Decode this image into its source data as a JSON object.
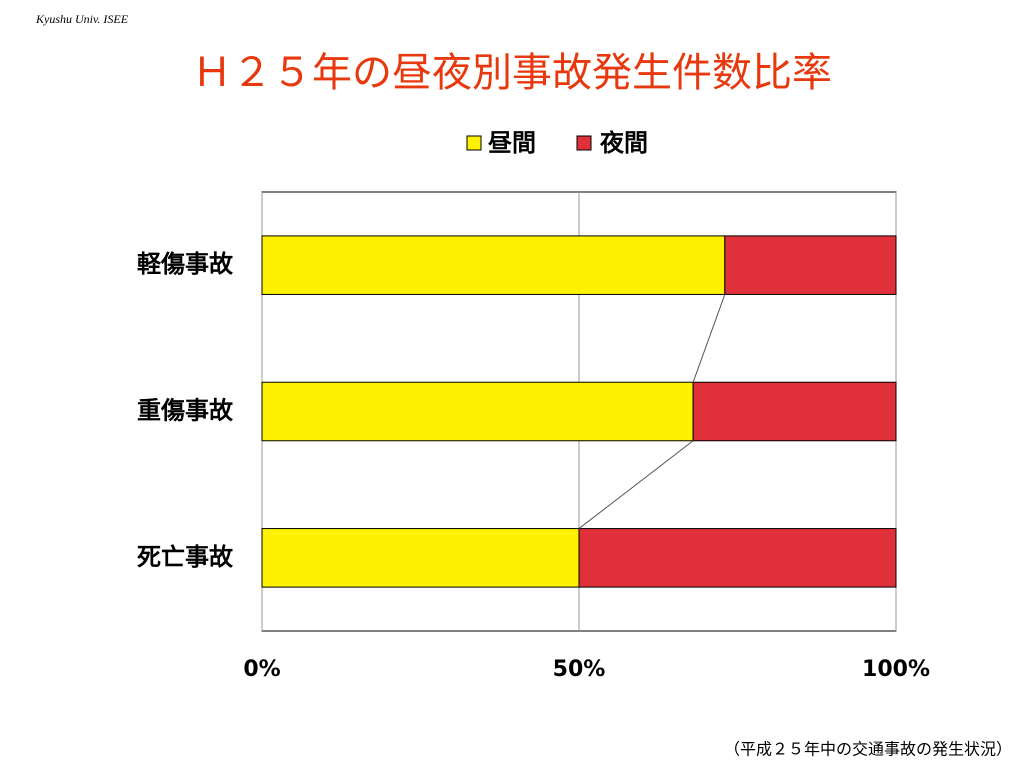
{
  "header": "Kyushu Univ. ISEE",
  "chart_data": {
    "type": "stacked_barh",
    "title": "Ｈ２５年の昼夜別事故発生件数比率",
    "categories": [
      "軽傷事故",
      "重傷事故",
      "死亡事故"
    ],
    "series": [
      {
        "name": "昼間",
        "color": "#fff200",
        "values": [
          73,
          68,
          50
        ]
      },
      {
        "name": "夜間",
        "color": "#e0313a",
        "values": [
          27,
          32,
          50
        ]
      }
    ],
    "xlim": [
      0,
      100
    ],
    "xticks": [
      {
        "value": 0,
        "label": "0%"
      },
      {
        "value": 50,
        "label": "50%"
      },
      {
        "value": 100,
        "label": "100%"
      }
    ],
    "grid": true,
    "series_lines": true,
    "source": "（平成２５年中の交通事故の発生状況）"
  }
}
